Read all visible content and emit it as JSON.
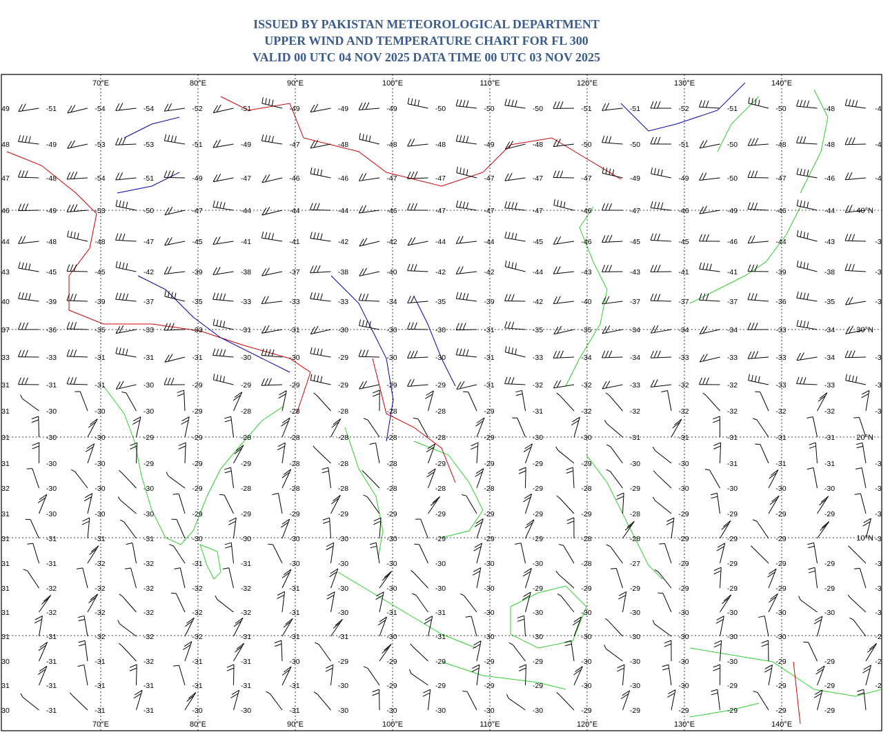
{
  "header": {
    "lines": [
      "ISSUED BY PAKISTAN METEOROLOGICAL DEPARTMENT",
      "UPPER WIND AND TEMPERATURE CHART FOR FL 300",
      "VALID 00 UTC 04 NOV 2025 DATA TIME 00 UTC 03 NOV 2025"
    ]
  },
  "map": {
    "longitude_labels": [
      "70°E",
      "80°E",
      "90°E",
      "100°E",
      "110°E",
      "120°E",
      "130°E",
      "140°E"
    ],
    "latitude_labels": [
      "40°N",
      "30°N",
      "20°N",
      "10°N"
    ],
    "temperatures": [
      [
        "49",
        "-51",
        "-54",
        "-54",
        "-52",
        "-51",
        "-49",
        "-49",
        "-49",
        "-50",
        "-50",
        "-50",
        "-51",
        "-51",
        "-52",
        "-51",
        "-50",
        "-48",
        "-4"
      ],
      [
        "48",
        "-49",
        "-53",
        "-53",
        "-51",
        "-49",
        "-47",
        "-48",
        "-48",
        "-48",
        "-49",
        "-48",
        "-50",
        "-50",
        "-51",
        "-50",
        "-48",
        "-48",
        "-4"
      ],
      [
        "47",
        "-48",
        "-54",
        "-51",
        "-49",
        "-47",
        "-46",
        "-46",
        "-47",
        "-47",
        "-47",
        "-47",
        "-47",
        "-49",
        "-49",
        "-50",
        "-47",
        "-46",
        "-4"
      ],
      [
        "46",
        "-49",
        "-53",
        "-50",
        "-47",
        "-44",
        "-44",
        "-44",
        "-46",
        "-47",
        "-47",
        "-47",
        "-46",
        "-47",
        "-46",
        "-49",
        "-46",
        "-44",
        null
      ],
      [
        "44",
        "-48",
        "-48",
        "-47",
        "-45",
        "-41",
        "-41",
        "-42",
        "-42",
        "-44",
        "-44",
        "-45",
        "-46",
        "-45",
        "-45",
        "-46",
        "-44",
        "-43",
        "-3"
      ],
      [
        "43",
        "-45",
        "-45",
        "-42",
        "-39",
        "-38",
        "-37",
        "-38",
        "-40",
        "-42",
        "-42",
        "-44",
        "-43",
        "-43",
        "-41",
        "-41",
        "-39",
        "-38",
        "-3"
      ],
      [
        "40",
        "-39",
        "-39",
        "-37",
        "-35",
        "-33",
        "-33",
        "-33",
        "-34",
        "-35",
        "-39",
        "-42",
        "-40",
        "-37",
        "-37",
        "-37",
        "-36",
        "-35",
        "-3"
      ],
      [
        "37",
        "-36",
        "-35",
        "-33",
        "-33",
        "-31",
        "-31",
        "-30",
        "-30",
        "-30",
        "-31",
        "-35",
        "-35",
        "-34",
        "-34",
        "-34",
        "-33",
        "-34",
        null
      ],
      [
        "33",
        "-33",
        "-31",
        "-31",
        "-31",
        "-30",
        "-30",
        "-29",
        "-30",
        "-30",
        "-31",
        "-33",
        "-34",
        "-34",
        "-33",
        "-33",
        "-33",
        "-34",
        "-3"
      ],
      [
        "31",
        "-31",
        "-31",
        "-30",
        "-29",
        "-29",
        "-29",
        "-29",
        "-29",
        "-29",
        "-31",
        "-32",
        "-32",
        "-33",
        "-32",
        "-32",
        "-33",
        "-33",
        "-3"
      ],
      [
        "31",
        "-30",
        "-30",
        "-30",
        "-29",
        "-28",
        "-28",
        "-28",
        "-28",
        "-28",
        "-29",
        "-31",
        "-32",
        "-32",
        "-32",
        "-32",
        "-32",
        "-32",
        "-3"
      ],
      [
        "31",
        "-30",
        "-30",
        "-29",
        "-29",
        "-28",
        "-28",
        "-28",
        "-28",
        "-28",
        "-29",
        "-30",
        "-30",
        "-31",
        "-31",
        "-31",
        "-31",
        "-31",
        null
      ],
      [
        "31",
        "-30",
        "-30",
        "-29",
        "-29",
        "-29",
        "-28",
        "-28",
        "-28",
        "-29",
        "-29",
        "-29",
        "-29",
        "-30",
        "-30",
        "-31",
        "-31",
        "-31",
        "-3"
      ],
      [
        "32",
        "-30",
        "-30",
        "-30",
        "-29",
        "-28",
        "-28",
        "-28",
        "-28",
        "-28",
        "-28",
        "-29",
        "-28",
        "-29",
        "-30",
        "-30",
        "-30",
        "-30",
        "-3"
      ],
      [
        "31",
        "-30",
        "-30",
        "-30",
        "-29",
        "-29",
        "-29",
        "-29",
        "-29",
        "-29",
        "-29",
        "-29",
        "-29",
        "-28",
        "-29",
        "-29",
        "-29",
        "-29",
        "-3"
      ],
      [
        "31",
        "-31",
        "-31",
        "-31",
        "-30",
        "-30",
        "-30",
        "-30",
        "-30",
        "-29",
        "-29",
        "-29",
        "-28",
        "-28",
        "-29",
        "-29",
        "-29",
        null,
        "-3"
      ],
      [
        "31",
        "-31",
        "-32",
        "-32",
        "-31",
        "-31",
        "-30",
        "-30",
        "-30",
        "-30",
        "-30",
        "-30",
        "-28",
        "-27",
        "-29",
        "-29",
        "-29",
        "-29",
        "-3"
      ],
      [
        "31",
        "-32",
        "-32",
        "-32",
        "-32",
        "-32",
        "-31",
        "-30",
        "-30",
        "-30",
        "-30",
        "-29",
        "-29",
        "-29",
        "-29",
        "-29",
        "-29",
        "-29",
        "-3"
      ],
      [
        "31",
        "-32",
        "-32",
        "-32",
        "-32",
        "-32",
        "-31",
        "-30",
        "-31",
        "-31",
        "-30",
        "-30",
        "-30",
        "-30",
        "-30",
        "-30",
        "-30",
        "-30",
        "-3"
      ],
      [
        "31",
        "-31",
        "-32",
        "-32",
        "-32",
        "-31",
        "-31",
        "-31",
        "-30",
        "-31",
        "-30",
        "-30",
        "-30",
        "-30",
        "-30",
        "-30",
        "-30",
        null,
        "-2"
      ],
      [
        "30",
        "-31",
        "-31",
        "-32",
        "-31",
        "-31",
        "-30",
        "-29",
        "-29",
        "-29",
        "-29",
        "-29",
        "-30",
        "-30",
        "-30",
        "-30",
        "-29",
        "-29",
        "-2"
      ],
      [
        "31",
        "-31",
        "-31",
        "-31",
        "-31",
        "-31",
        "-31",
        "-30",
        "-29",
        "-29",
        "-29",
        "-29",
        "-30",
        "-30",
        "-30",
        "-29",
        "-29",
        "-29",
        "-2"
      ],
      [
        "30",
        "-31",
        "-31",
        "-31",
        "-30",
        "-30",
        "-31",
        "-30",
        "-30",
        "-30",
        "-30",
        "-30",
        "-29",
        "-29",
        "-29",
        "-29",
        "-29",
        "-29",
        null
      ]
    ]
  }
}
